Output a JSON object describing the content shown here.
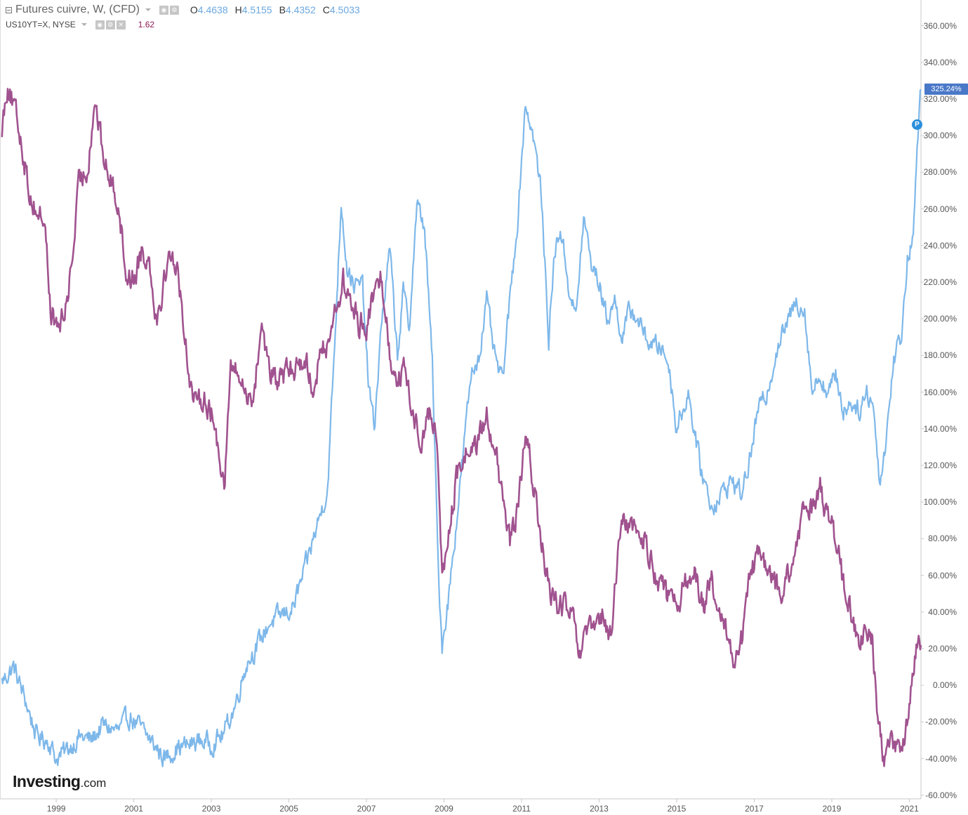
{
  "legend": {
    "series1": {
      "symbol": "Futures cuivre, W, (CFD)",
      "ohlc": [
        {
          "k": "O",
          "v": "4.4638"
        },
        {
          "k": "H",
          "v": "4.5155"
        },
        {
          "k": "B",
          "v": "4.4352"
        },
        {
          "k": "C",
          "v": "4.5033"
        }
      ],
      "color": "#7eb8ea"
    },
    "series2": {
      "symbol": "US10YT=X, NYSE",
      "value": "1.62",
      "color": "#a0528f"
    }
  },
  "last_value_label": "325.24%",
  "marker_label": "P",
  "logo": {
    "main": "Investing",
    "dot": ".com"
  },
  "icons": [
    "collapse-icon",
    "caret-down-icon",
    "eye-icon",
    "gear-icon",
    "close-icon"
  ],
  "chart_data": {
    "type": "line",
    "ylim": [
      -62,
      374
    ],
    "y_ticks": [
      "360.00%",
      "340.00%",
      "320.00%",
      "300.00%",
      "280.00%",
      "260.00%",
      "240.00%",
      "220.00%",
      "200.00%",
      "180.00%",
      "160.00%",
      "140.00%",
      "120.00%",
      "100.00%",
      "80.00%",
      "60.00%",
      "40.00%",
      "20.00%",
      "0.00%",
      "-20.00%",
      "-40.00%",
      "-60.00%"
    ],
    "x_ticks": [
      "1999",
      "2001",
      "2003",
      "2005",
      "2007",
      "2009",
      "2011",
      "2013",
      "2015",
      "2017",
      "2019",
      "2021"
    ],
    "xlim": [
      1997.55,
      2021.3
    ],
    "grid": false,
    "series": [
      {
        "name": "Futures cuivre, W, (CFD)",
        "color": "#7eb8ea",
        "points": [
          [
            1997.6,
            2
          ],
          [
            1997.9,
            10
          ],
          [
            1998.2,
            -8
          ],
          [
            1998.5,
            -28
          ],
          [
            1998.8,
            -30
          ],
          [
            1999.0,
            -40
          ],
          [
            1999.3,
            -35
          ],
          [
            1999.6,
            -28
          ],
          [
            1999.9,
            -30
          ],
          [
            2000.2,
            -22
          ],
          [
            2000.6,
            -25
          ],
          [
            2000.9,
            -17
          ],
          [
            2001.2,
            -24
          ],
          [
            2001.5,
            -32
          ],
          [
            2001.8,
            -40
          ],
          [
            2002.1,
            -34
          ],
          [
            2002.4,
            -33
          ],
          [
            2002.7,
            -30
          ],
          [
            2003.0,
            -32
          ],
          [
            2003.3,
            -27
          ],
          [
            2003.6,
            -12
          ],
          [
            2003.9,
            12
          ],
          [
            2004.2,
            22
          ],
          [
            2004.5,
            34
          ],
          [
            2004.8,
            38
          ],
          [
            2005.1,
            42
          ],
          [
            2005.4,
            62
          ],
          [
            2005.7,
            85
          ],
          [
            2006.0,
            108
          ],
          [
            2006.2,
            195
          ],
          [
            2006.35,
            265
          ],
          [
            2006.5,
            228
          ],
          [
            2006.7,
            218
          ],
          [
            2006.9,
            218
          ],
          [
            2007.05,
            165
          ],
          [
            2007.2,
            140
          ],
          [
            2007.4,
            200
          ],
          [
            2007.6,
            238
          ],
          [
            2007.8,
            180
          ],
          [
            2007.95,
            215
          ],
          [
            2008.1,
            195
          ],
          [
            2008.3,
            262
          ],
          [
            2008.5,
            250
          ],
          [
            2008.7,
            175
          ],
          [
            2008.85,
            65
          ],
          [
            2008.95,
            22
          ],
          [
            2009.1,
            45
          ],
          [
            2009.3,
            85
          ],
          [
            2009.5,
            128
          ],
          [
            2009.7,
            170
          ],
          [
            2009.9,
            180
          ],
          [
            2010.1,
            210
          ],
          [
            2010.3,
            180
          ],
          [
            2010.5,
            165
          ],
          [
            2010.7,
            210
          ],
          [
            2010.9,
            255
          ],
          [
            2011.1,
            318
          ],
          [
            2011.3,
            300
          ],
          [
            2011.5,
            270
          ],
          [
            2011.7,
            190
          ],
          [
            2011.85,
            235
          ],
          [
            2012.0,
            250
          ],
          [
            2012.2,
            220
          ],
          [
            2012.4,
            200
          ],
          [
            2012.6,
            255
          ],
          [
            2012.8,
            230
          ],
          [
            2013.0,
            220
          ],
          [
            2013.2,
            200
          ],
          [
            2013.4,
            210
          ],
          [
            2013.6,
            190
          ],
          [
            2013.8,
            205
          ],
          [
            2014.0,
            200
          ],
          [
            2014.2,
            190
          ],
          [
            2014.4,
            185
          ],
          [
            2014.6,
            185
          ],
          [
            2014.8,
            175
          ],
          [
            2015.0,
            140
          ],
          [
            2015.3,
            160
          ],
          [
            2015.6,
            120
          ],
          [
            2015.9,
            98
          ],
          [
            2016.1,
            102
          ],
          [
            2016.4,
            112
          ],
          [
            2016.7,
            105
          ],
          [
            2016.9,
            125
          ],
          [
            2017.1,
            150
          ],
          [
            2017.3,
            158
          ],
          [
            2017.6,
            185
          ],
          [
            2017.9,
            200
          ],
          [
            2018.1,
            210
          ],
          [
            2018.3,
            205
          ],
          [
            2018.5,
            160
          ],
          [
            2018.7,
            170
          ],
          [
            2018.9,
            158
          ],
          [
            2019.1,
            170
          ],
          [
            2019.3,
            150
          ],
          [
            2019.5,
            155
          ],
          [
            2019.7,
            150
          ],
          [
            2019.9,
            160
          ],
          [
            2020.05,
            155
          ],
          [
            2020.25,
            110
          ],
          [
            2020.4,
            135
          ],
          [
            2020.6,
            178
          ],
          [
            2020.8,
            192
          ],
          [
            2020.95,
            232
          ],
          [
            2021.1,
            248
          ],
          [
            2021.2,
            290
          ],
          [
            2021.3,
            325.24
          ]
        ]
      },
      {
        "name": "US10YT=X, NYSE",
        "color": "#a0528f",
        "points": [
          [
            1997.6,
            305
          ],
          [
            1997.75,
            330
          ],
          [
            1997.9,
            315
          ],
          [
            1998.1,
            298
          ],
          [
            1998.3,
            270
          ],
          [
            1998.5,
            258
          ],
          [
            1998.7,
            255
          ],
          [
            1998.85,
            205
          ],
          [
            1999.0,
            195
          ],
          [
            1999.2,
            200
          ],
          [
            1999.4,
            230
          ],
          [
            1999.6,
            275
          ],
          [
            1999.8,
            282
          ],
          [
            2000.0,
            320
          ],
          [
            2000.2,
            290
          ],
          [
            2000.4,
            275
          ],
          [
            2000.6,
            265
          ],
          [
            2000.8,
            225
          ],
          [
            2001.0,
            222
          ],
          [
            2001.2,
            238
          ],
          [
            2001.4,
            232
          ],
          [
            2001.6,
            200
          ],
          [
            2001.8,
            225
          ],
          [
            2002.0,
            238
          ],
          [
            2002.2,
            215
          ],
          [
            2002.4,
            175
          ],
          [
            2002.6,
            150
          ],
          [
            2002.8,
            160
          ],
          [
            2003.0,
            148
          ],
          [
            2003.2,
            128
          ],
          [
            2003.35,
            112
          ],
          [
            2003.5,
            175
          ],
          [
            2003.7,
            168
          ],
          [
            2003.9,
            160
          ],
          [
            2004.1,
            158
          ],
          [
            2004.3,
            200
          ],
          [
            2004.5,
            170
          ],
          [
            2004.7,
            165
          ],
          [
            2004.9,
            170
          ],
          [
            2005.1,
            172
          ],
          [
            2005.4,
            180
          ],
          [
            2005.6,
            163
          ],
          [
            2005.8,
            178
          ],
          [
            2006.0,
            188
          ],
          [
            2006.2,
            205
          ],
          [
            2006.4,
            220
          ],
          [
            2006.6,
            208
          ],
          [
            2006.8,
            198
          ],
          [
            2007.0,
            198
          ],
          [
            2007.2,
            212
          ],
          [
            2007.4,
            225
          ],
          [
            2007.6,
            180
          ],
          [
            2007.8,
            170
          ],
          [
            2008.0,
            170
          ],
          [
            2008.2,
            148
          ],
          [
            2008.4,
            135
          ],
          [
            2008.6,
            148
          ],
          [
            2008.8,
            140
          ],
          [
            2008.95,
            60
          ],
          [
            2009.1,
            78
          ],
          [
            2009.3,
            110
          ],
          [
            2009.5,
            125
          ],
          [
            2009.7,
            130
          ],
          [
            2009.9,
            132
          ],
          [
            2010.1,
            148
          ],
          [
            2010.3,
            132
          ],
          [
            2010.5,
            100
          ],
          [
            2010.7,
            78
          ],
          [
            2010.9,
            95
          ],
          [
            2011.1,
            135
          ],
          [
            2011.3,
            112
          ],
          [
            2011.5,
            80
          ],
          [
            2011.7,
            52
          ],
          [
            2011.9,
            45
          ],
          [
            2012.1,
            42
          ],
          [
            2012.3,
            38
          ],
          [
            2012.5,
            15
          ],
          [
            2012.7,
            28
          ],
          [
            2012.9,
            30
          ],
          [
            2013.1,
            38
          ],
          [
            2013.3,
            25
          ],
          [
            2013.5,
            75
          ],
          [
            2013.7,
            92
          ],
          [
            2013.9,
            85
          ],
          [
            2014.1,
            82
          ],
          [
            2014.3,
            72
          ],
          [
            2014.5,
            58
          ],
          [
            2014.7,
            52
          ],
          [
            2014.9,
            40
          ],
          [
            2015.1,
            50
          ],
          [
            2015.3,
            58
          ],
          [
            2015.5,
            60
          ],
          [
            2015.7,
            45
          ],
          [
            2015.9,
            55
          ],
          [
            2016.1,
            35
          ],
          [
            2016.3,
            28
          ],
          [
            2016.5,
            15
          ],
          [
            2016.7,
            25
          ],
          [
            2016.9,
            62
          ],
          [
            2017.1,
            70
          ],
          [
            2017.3,
            65
          ],
          [
            2017.5,
            55
          ],
          [
            2017.7,
            52
          ],
          [
            2017.9,
            60
          ],
          [
            2018.1,
            75
          ],
          [
            2018.3,
            95
          ],
          [
            2018.5,
            98
          ],
          [
            2018.7,
            110
          ],
          [
            2018.9,
            92
          ],
          [
            2019.1,
            80
          ],
          [
            2019.3,
            55
          ],
          [
            2019.5,
            40
          ],
          [
            2019.7,
            20
          ],
          [
            2019.9,
            32
          ],
          [
            2020.05,
            22
          ],
          [
            2020.2,
            -20
          ],
          [
            2020.35,
            -38
          ],
          [
            2020.5,
            -32
          ],
          [
            2020.7,
            -35
          ],
          [
            2020.9,
            -25
          ],
          [
            2021.0,
            -15
          ],
          [
            2021.1,
            5
          ],
          [
            2021.2,
            22
          ],
          [
            2021.3,
            22
          ]
        ]
      }
    ]
  }
}
